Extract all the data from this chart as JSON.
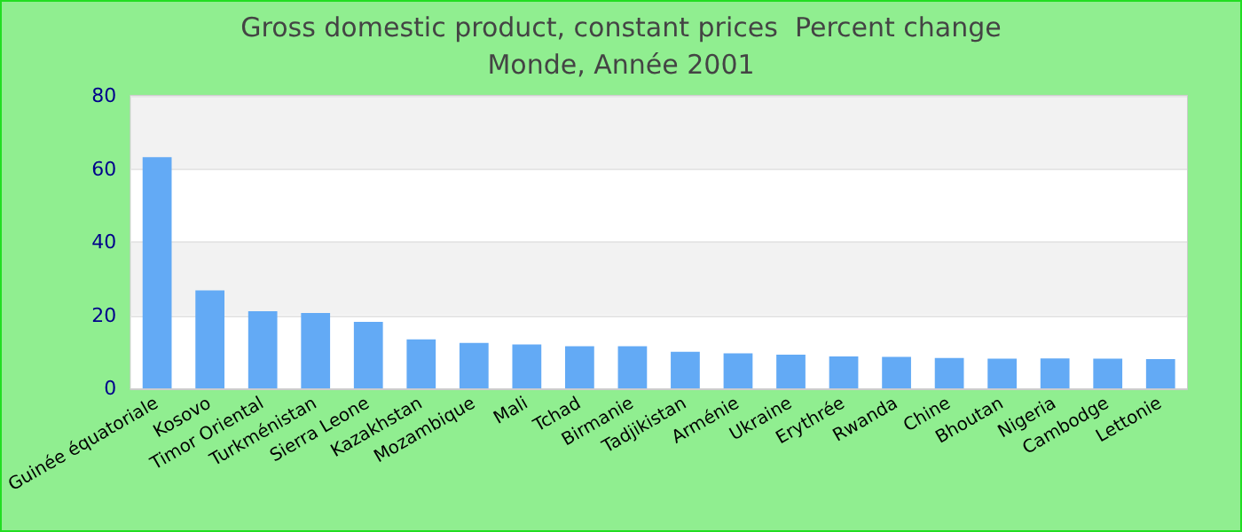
{
  "chart_data": {
    "type": "bar",
    "title": "Gross domestic product, constant prices  Percent change",
    "subtitle": "Monde, Année 2001",
    "categories": [
      "Guinée équatoriale",
      "Kosovo",
      "Timor Oriental",
      "Turkménistan",
      "Sierra Leone",
      "Kazakhstan",
      "Mozambique",
      "Mali",
      "Tchad",
      "Birmanie",
      "Tadjikistan",
      "Arménie",
      "Ukraine",
      "Erythrée",
      "Rwanda",
      "Chine",
      "Bhoutan",
      "Nigeria",
      "Cambodge",
      "Lettonie"
    ],
    "values": [
      63.2,
      26.8,
      21.1,
      20.6,
      18.2,
      13.4,
      12.4,
      12.0,
      11.5,
      11.5,
      10.0,
      9.6,
      9.2,
      8.7,
      8.6,
      8.3,
      8.1,
      8.2,
      8.1,
      8.0
    ],
    "color": "#63aaf5",
    "ylim": [
      0,
      80
    ],
    "yticks": [
      0,
      20,
      40,
      60,
      80
    ],
    "grid": "y"
  }
}
